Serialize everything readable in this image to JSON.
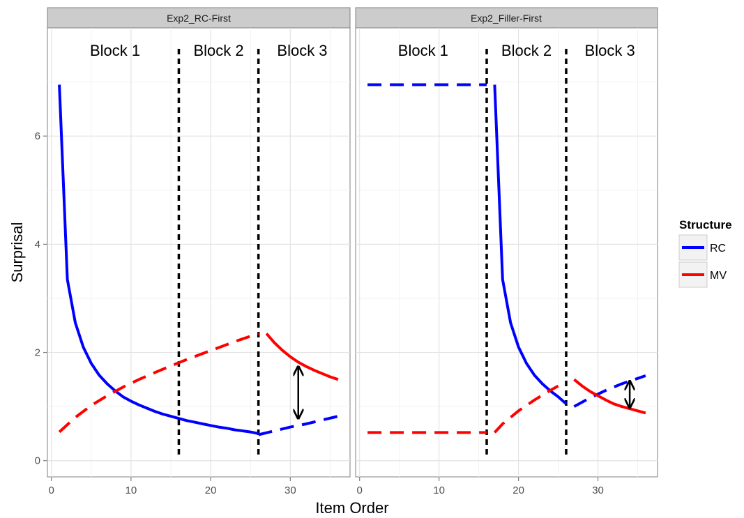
{
  "chart_data": {
    "type": "line",
    "xlabel": "Item Order",
    "ylabel": "Surprisal",
    "xlim": [
      -0.5,
      37.5
    ],
    "ylim": [
      -0.3,
      8.0
    ],
    "x_ticks": [
      0,
      10,
      20,
      30
    ],
    "y_ticks": [
      0,
      2,
      4,
      6
    ],
    "grid": true,
    "legend": {
      "title": "Structure",
      "position": "right",
      "entries": [
        {
          "name": "RC",
          "color": "#0000ff"
        },
        {
          "name": "MV",
          "color": "#ff0000"
        }
      ]
    },
    "panels": [
      {
        "title": "Exp2_RC-First",
        "block_boundaries": [
          16,
          26
        ],
        "block_labels": [
          {
            "text": "Block 1",
            "x": 8
          },
          {
            "text": "Block 2",
            "x": 21
          },
          {
            "text": "Block 3",
            "x": 31.5
          }
        ],
        "series": [
          {
            "name": "RC",
            "color": "#0000ff",
            "style": "solid",
            "x": [
              1,
              2,
              3,
              4,
              5,
              6,
              7,
              8,
              9,
              10,
              11,
              12,
              13,
              14,
              15,
              16,
              17,
              18,
              19,
              20,
              21,
              22,
              23,
              24,
              25,
              26
            ],
            "y": [
              6.95,
              3.35,
              2.55,
              2.1,
              1.8,
              1.58,
              1.42,
              1.29,
              1.18,
              1.1,
              1.03,
              0.97,
              0.91,
              0.86,
              0.82,
              0.78,
              0.74,
              0.71,
              0.68,
              0.65,
              0.62,
              0.6,
              0.57,
              0.55,
              0.53,
              0.5
            ]
          },
          {
            "name": "RC",
            "color": "#0000ff",
            "style": "dashed",
            "x": [
              26,
              28,
              30,
              32,
              34,
              36
            ],
            "y": [
              0.48,
              0.55,
              0.62,
              0.68,
              0.75,
              0.82
            ]
          },
          {
            "name": "MV",
            "color": "#ff0000",
            "style": "dashed",
            "x": [
              1,
              3,
              5,
              7,
              9,
              11,
              13,
              15,
              17,
              19,
              21,
              23,
              25,
              26
            ],
            "y": [
              0.53,
              0.8,
              1.02,
              1.2,
              1.36,
              1.5,
              1.63,
              1.75,
              1.87,
              1.98,
              2.09,
              2.2,
              2.3,
              2.35
            ]
          },
          {
            "name": "MV",
            "color": "#ff0000",
            "style": "solid",
            "x": [
              27,
              28,
              29,
              30,
              31,
              32,
              33,
              34,
              35,
              36
            ],
            "y": [
              2.35,
              2.18,
              2.04,
              1.92,
              1.82,
              1.74,
              1.67,
              1.61,
              1.55,
              1.5
            ]
          }
        ],
        "annotation": {
          "type": "double-arrow",
          "x": 31,
          "y1": 0.8,
          "y2": 1.72
        }
      },
      {
        "title": "Exp2_Filler-First",
        "block_boundaries": [
          16,
          26
        ],
        "block_labels": [
          {
            "text": "Block 1",
            "x": 8
          },
          {
            "text": "Block 2",
            "x": 21
          },
          {
            "text": "Block 3",
            "x": 31.5
          }
        ],
        "series": [
          {
            "name": "RC",
            "color": "#0000ff",
            "style": "dashed",
            "x": [
              1,
              16
            ],
            "y": [
              6.95,
              6.95
            ]
          },
          {
            "name": "RC",
            "color": "#0000ff",
            "style": "solid",
            "x": [
              17,
              18,
              19,
              20,
              21,
              22,
              23,
              24,
              25,
              26
            ],
            "y": [
              6.95,
              3.35,
              2.55,
              2.1,
              1.8,
              1.58,
              1.42,
              1.29,
              1.18,
              1.05
            ]
          },
          {
            "name": "RC",
            "color": "#0000ff",
            "style": "dashed",
            "x": [
              27,
              29,
              31,
              33,
              35,
              36
            ],
            "y": [
              1.0,
              1.16,
              1.3,
              1.42,
              1.52,
              1.57
            ]
          },
          {
            "name": "MV",
            "color": "#ff0000",
            "style": "dashed",
            "x": [
              1,
              16
            ],
            "y": [
              0.52,
              0.52
            ]
          },
          {
            "name": "MV",
            "color": "#ff0000",
            "style": "dashed",
            "x": [
              17,
              18,
              19,
              20,
              21,
              22,
              23,
              24,
              25
            ],
            "y": [
              0.52,
              0.68,
              0.8,
              0.92,
              1.02,
              1.12,
              1.21,
              1.3,
              1.38
            ]
          },
          {
            "name": "MV",
            "color": "#ff0000",
            "style": "solid",
            "x": [
              27,
              28,
              29,
              30,
              31,
              32,
              33,
              34,
              35,
              36
            ],
            "y": [
              1.5,
              1.38,
              1.28,
              1.2,
              1.12,
              1.05,
              1.0,
              0.96,
              0.92,
              0.88
            ]
          }
        ],
        "annotation": {
          "type": "double-arrow",
          "x": 34,
          "y1": 1.0,
          "y2": 1.45
        }
      }
    ]
  }
}
